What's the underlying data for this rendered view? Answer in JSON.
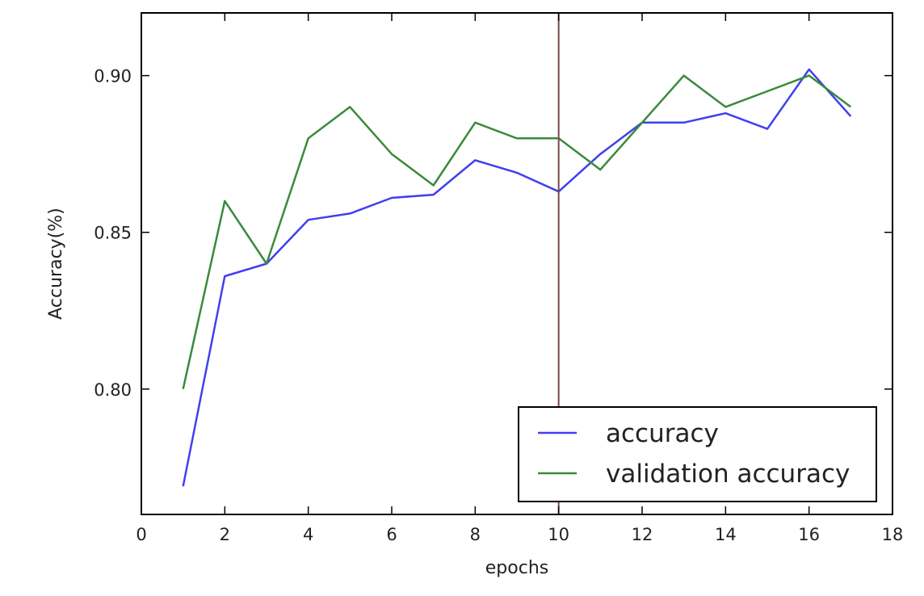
{
  "chart_data": {
    "type": "line",
    "title": "",
    "xlabel": "epochs",
    "ylabel": "Accuracy(%)",
    "xlim": [
      0,
      18
    ],
    "ylim": [
      0.76,
      0.92
    ],
    "xticks": [
      0,
      2,
      4,
      6,
      8,
      10,
      12,
      14,
      16,
      18
    ],
    "xtick_labels": [
      "0",
      "2",
      "4",
      "6",
      "8",
      "10",
      "12",
      "14",
      "16",
      "18"
    ],
    "yticks": [
      0.8,
      0.85,
      0.9
    ],
    "ytick_labels": [
      "0.80",
      "0.85",
      "0.90"
    ],
    "grid": false,
    "legend_position": "lower-right",
    "series": [
      {
        "name": "accuracy",
        "color": "#4040f0",
        "x": [
          1,
          2,
          3,
          4,
          5,
          6,
          7,
          8,
          9,
          10,
          11,
          12,
          13,
          14,
          15,
          16,
          17
        ],
        "y": [
          0.769,
          0.836,
          0.84,
          0.854,
          0.856,
          0.861,
          0.862,
          0.873,
          0.869,
          0.863,
          0.875,
          0.885,
          0.885,
          0.888,
          0.883,
          0.902,
          0.887
        ]
      },
      {
        "name": "validation accuracy",
        "color": "#3a8a3a",
        "x": [
          1,
          2,
          3,
          4,
          5,
          6,
          7,
          8,
          9,
          10,
          11,
          12,
          13,
          14,
          15,
          16,
          17
        ],
        "y": [
          0.8,
          0.86,
          0.84,
          0.88,
          0.89,
          0.875,
          0.865,
          0.885,
          0.88,
          0.88,
          0.87,
          0.885,
          0.9,
          0.89,
          0.895,
          0.9,
          0.89
        ]
      }
    ],
    "vline": {
      "x": 10,
      "color": "#7a4a4a"
    }
  }
}
